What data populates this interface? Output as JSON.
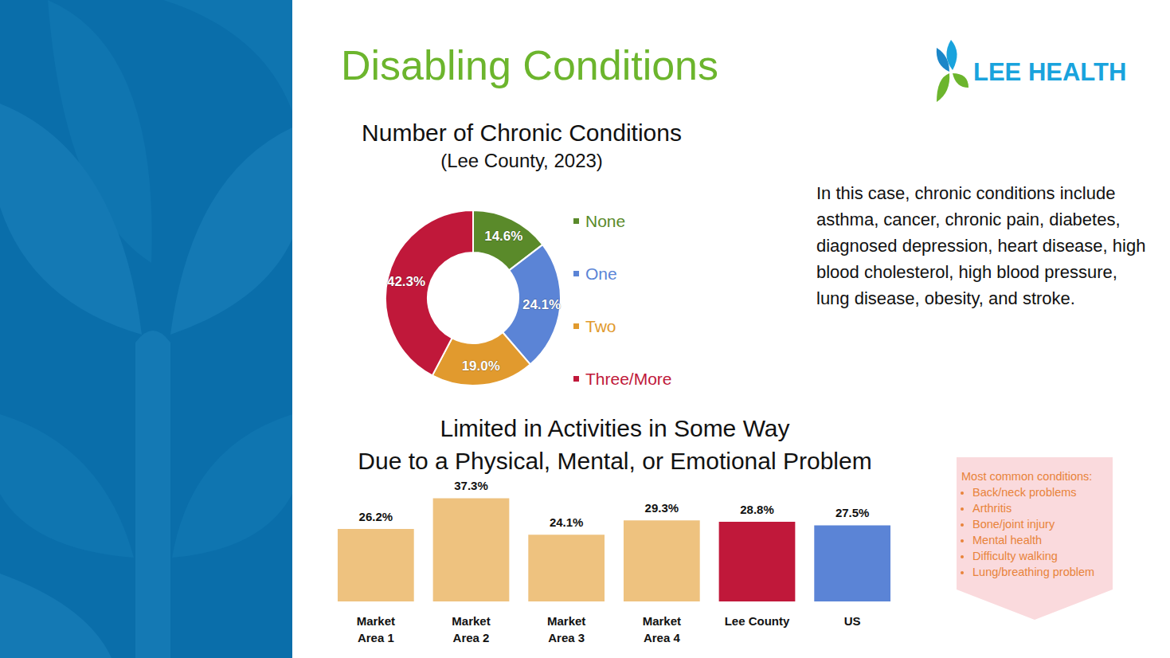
{
  "header": {
    "title": "Disabling Conditions",
    "logo": "LEE HEALTH"
  },
  "note": "In this case, chronic conditions include asthma, cancer, chronic pain, diabetes, diagnosed depression, heart disease, high blood cholesterol, high blood pressure, lung disease, obesity, and stroke.",
  "callout": {
    "title": "Most common conditions:",
    "items": [
      "Back/neck problems",
      "Arthritis",
      "Bone/joint injury",
      "Mental health",
      "Difficulty walking",
      "Lung/breathing problem"
    ]
  },
  "chart_data": [
    {
      "type": "pie",
      "title": "Number of Chronic Conditions",
      "subtitle": "(Lee County, 2023)",
      "categories": [
        "None",
        "One",
        "Two",
        "Three/More"
      ],
      "values": [
        14.6,
        24.1,
        19.0,
        42.3
      ],
      "value_labels": [
        "14.6%",
        "24.1%",
        "19.0%",
        "42.3%"
      ],
      "colors": [
        "#5A8A2A",
        "#5B84D6",
        "#E19A2E",
        "#C0183A"
      ],
      "data_labels": true,
      "legend": "right"
    },
    {
      "type": "bar",
      "title": "Limited in Activities in Some Way\nDue to a Physical, Mental, or Emotional Problem",
      "categories": [
        "Market Area 1",
        "Market Area 2",
        "Market Area 3",
        "Market Area 4",
        "Lee County",
        "US"
      ],
      "values": [
        26.2,
        37.3,
        24.1,
        29.3,
        28.8,
        27.5
      ],
      "value_labels": [
        "26.2%",
        "37.3%",
        "24.1%",
        "29.3%",
        "28.8%",
        "27.5%"
      ],
      "colors": [
        "#EEC27F",
        "#EEC27F",
        "#EEC27F",
        "#EEC27F",
        "#C0183A",
        "#5B84D6"
      ],
      "ylim": [
        0,
        40
      ],
      "data_labels": true,
      "tick_labels": "x",
      "grid": false
    }
  ]
}
